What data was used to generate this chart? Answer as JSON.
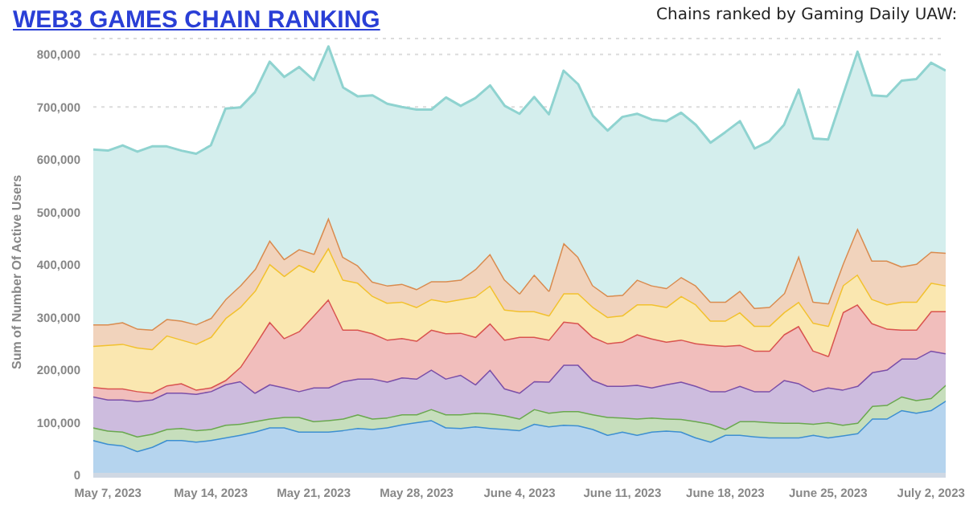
{
  "chart_data": {
    "type": "area",
    "title": "WEB3 GAMES CHAIN RANKING",
    "ylabel": "Sum of Number Of Active Users",
    "annotations": [
      "Chains ranked by Gaming Daily UAW:"
    ],
    "stacked": true,
    "x": [
      "2023-05-06",
      "2023-05-07",
      "2023-05-08",
      "2023-05-09",
      "2023-05-10",
      "2023-05-11",
      "2023-05-12",
      "2023-05-13",
      "2023-05-14",
      "2023-05-15",
      "2023-05-16",
      "2023-05-17",
      "2023-05-18",
      "2023-05-19",
      "2023-05-20",
      "2023-05-21",
      "2023-05-22",
      "2023-05-23",
      "2023-05-24",
      "2023-05-25",
      "2023-05-26",
      "2023-05-27",
      "2023-05-28",
      "2023-05-29",
      "2023-05-30",
      "2023-05-31",
      "2023-06-01",
      "2023-06-02",
      "2023-06-03",
      "2023-06-04",
      "2023-06-05",
      "2023-06-06",
      "2023-06-07",
      "2023-06-08",
      "2023-06-09",
      "2023-06-10",
      "2023-06-11",
      "2023-06-12",
      "2023-06-13",
      "2023-06-14",
      "2023-06-15",
      "2023-06-16",
      "2023-06-17",
      "2023-06-18",
      "2023-06-19",
      "2023-06-20",
      "2023-06-21",
      "2023-06-22",
      "2023-06-23",
      "2023-06-24",
      "2023-06-25",
      "2023-06-26",
      "2023-06-27",
      "2023-06-28",
      "2023-06-29",
      "2023-06-30",
      "2023-07-01",
      "2023-07-02",
      "2023-07-03"
    ],
    "series": [
      {
        "color": "#3d8fd1",
        "values": [
          67000,
          60000,
          57000,
          46000,
          54000,
          67000,
          67000,
          64000,
          67000,
          72000,
          77000,
          83000,
          91000,
          91000,
          83000,
          83000,
          83000,
          86000,
          90000,
          88000,
          91000,
          97000,
          101000,
          105000,
          91000,
          90000,
          93000,
          90000,
          88000,
          86000,
          98000,
          93000,
          96000,
          95000,
          88000,
          77000,
          83000,
          77000,
          83000,
          85000,
          83000,
          72000,
          64000,
          77000,
          77000,
          74000,
          72000,
          72000,
          72000,
          77000,
          72000,
          76000,
          80000,
          108000,
          108000,
          124000,
          119000,
          124000,
          142000
        ]
      },
      {
        "color": "#6aa84f",
        "values": [
          24000,
          25000,
          26000,
          28000,
          25000,
          21000,
          23000,
          22000,
          21000,
          24000,
          21000,
          20000,
          17000,
          20000,
          28000,
          20000,
          22000,
          22000,
          26000,
          20000,
          19000,
          19000,
          15000,
          21000,
          25000,
          26000,
          26000,
          28000,
          26000,
          22000,
          28000,
          26000,
          26000,
          27000,
          28000,
          34000,
          27000,
          31000,
          27000,
          23000,
          24000,
          31000,
          34000,
          11000,
          26000,
          29000,
          29000,
          28000,
          28000,
          21000,
          29000,
          20000,
          20000,
          24000,
          26000,
          26000,
          24000,
          23000,
          30000
        ]
      },
      {
        "color": "#7b4fa8",
        "values": [
          59000,
          59000,
          61000,
          67000,
          65000,
          69000,
          67000,
          69000,
          72000,
          77000,
          81000,
          54000,
          65000,
          56000,
          49000,
          64000,
          62000,
          71000,
          68000,
          76000,
          68000,
          70000,
          68000,
          75000,
          68000,
          75000,
          54000,
          83000,
          51000,
          49000,
          53000,
          59000,
          88000,
          88000,
          65000,
          59000,
          60000,
          64000,
          57000,
          65000,
          71000,
          67000,
          62000,
          72000,
          67000,
          57000,
          59000,
          81000,
          75000,
          62000,
          66000,
          67000,
          70000,
          64000,
          67000,
          72000,
          79000,
          90000,
          60000
        ]
      },
      {
        "color": "#d9534f",
        "values": [
          18000,
          21000,
          21000,
          19000,
          13000,
          14000,
          18000,
          8000,
          7000,
          8000,
          27000,
          91000,
          119000,
          94000,
          114000,
          137000,
          168000,
          98000,
          93000,
          86000,
          80000,
          75000,
          72000,
          76000,
          86000,
          80000,
          90000,
          88000,
          93000,
          106000,
          84000,
          80000,
          82000,
          79000,
          82000,
          81000,
          84000,
          96000,
          93000,
          81000,
          80000,
          81000,
          88000,
          86000,
          78000,
          77000,
          77000,
          87000,
          109000,
          77000,
          60000,
          147000,
          155000,
          93000,
          78000,
          55000,
          55000,
          75000,
          80000
        ]
      },
      {
        "color": "#f2c12e",
        "values": [
          78000,
          83000,
          85000,
          83000,
          83000,
          95000,
          83000,
          87000,
          96000,
          118000,
          114000,
          103000,
          110000,
          118000,
          126000,
          83000,
          98000,
          95000,
          89000,
          71000,
          70000,
          69000,
          64000,
          58000,
          60000,
          64000,
          77000,
          72000,
          57000,
          49000,
          49000,
          46000,
          54000,
          57000,
          57000,
          50000,
          50000,
          57000,
          65000,
          66000,
          83000,
          74000,
          46000,
          48000,
          62000,
          47000,
          47000,
          42000,
          46000,
          53000,
          57000,
          51000,
          57000,
          46000,
          46000,
          53000,
          53000,
          54000,
          49000
        ]
      },
      {
        "color": "#d98b4f",
        "values": [
          41000,
          39000,
          41000,
          36000,
          37000,
          31000,
          36000,
          37000,
          36000,
          36000,
          41000,
          41000,
          45000,
          32000,
          30000,
          34000,
          57000,
          43000,
          33000,
          27000,
          33000,
          34000,
          34000,
          34000,
          39000,
          37000,
          52000,
          60000,
          57000,
          34000,
          70000,
          47000,
          96000,
          69000,
          41000,
          40000,
          39000,
          47000,
          36000,
          36000,
          36000,
          36000,
          36000,
          36000,
          41000,
          34000,
          36000,
          36000,
          88000,
          40000,
          43000,
          41000,
          88000,
          73000,
          83000,
          67000,
          72000,
          59000,
          62000
        ]
      },
      {
        "color": "#8fd3d0",
        "values": [
          332000,
          330000,
          336000,
          336000,
          348000,
          328000,
          323000,
          324000,
          328000,
          362000,
          338000,
          336000,
          339000,
          346000,
          346000,
          330000,
          325000,
          322000,
          321000,
          354000,
          345000,
          336000,
          341000,
          326000,
          349000,
          330000,
          325000,
          320000,
          330000,
          341000,
          337000,
          335000,
          327000,
          328000,
          322000,
          314000,
          338000,
          315000,
          315000,
          317000,
          312000,
          305000,
          302000,
          322000,
          322000,
          303000,
          315000,
          320000,
          315000,
          310000,
          311000,
          320000,
          335000,
          314000,
          312000,
          353000,
          351000,
          359000,
          346000
        ]
      }
    ],
    "xlim": [
      "2023-05-06",
      "2023-07-03"
    ],
    "xticks": [
      {
        "value": "2023-05-07",
        "label": "May 7, 2023"
      },
      {
        "value": "2023-05-14",
        "label": "May 14, 2023"
      },
      {
        "value": "2023-05-21",
        "label": "May 21, 2023"
      },
      {
        "value": "2023-05-28",
        "label": "May 28, 2023"
      },
      {
        "value": "2023-06-04",
        "label": "June 4, 2023"
      },
      {
        "value": "2023-06-11",
        "label": "June 11, 2023"
      },
      {
        "value": "2023-06-18",
        "label": "June 18, 2023"
      },
      {
        "value": "2023-06-25",
        "label": "June 25, 2023"
      },
      {
        "value": "2023-07-02",
        "label": "July 2, 2023"
      }
    ],
    "ylim": [
      0,
      830000
    ],
    "yticks": [
      {
        "value": 0,
        "label": "0"
      },
      {
        "value": 100000,
        "label": "100,000"
      },
      {
        "value": 200000,
        "label": "200,000"
      },
      {
        "value": 300000,
        "label": "300,000"
      },
      {
        "value": 400000,
        "label": "400,000"
      },
      {
        "value": 500000,
        "label": "500,000"
      },
      {
        "value": 600000,
        "label": "600,000"
      },
      {
        "value": 700000,
        "label": "700,000"
      },
      {
        "value": 800000,
        "label": "800,000"
      }
    ],
    "grid": "y",
    "legend": false
  }
}
